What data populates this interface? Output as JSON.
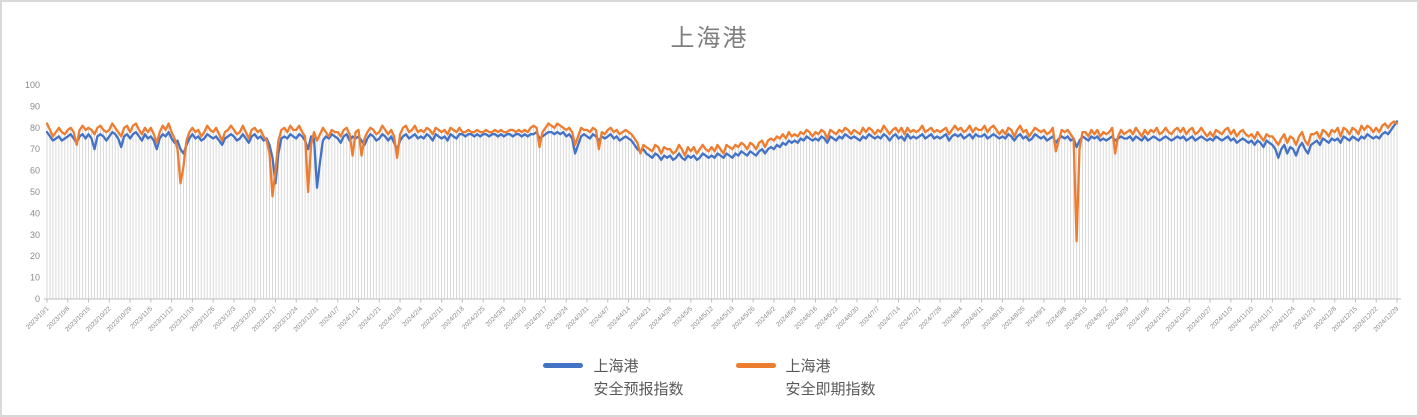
{
  "window": {
    "background": "#ffffff",
    "border_color": "#d9d9d9"
  },
  "chart_data": {
    "type": "line",
    "title": "上海港",
    "title_color": "#7f7f7f",
    "xlabel": "",
    "ylabel": "",
    "ylim": [
      0,
      100
    ],
    "y_ticks": [
      0,
      10,
      20,
      30,
      40,
      50,
      60,
      70,
      80,
      90,
      100
    ],
    "grid": "vertical-drop-lines-per-day",
    "grid_color": "#d9d9d9",
    "axis_color": "#bfbfbf",
    "tick_label_color": "#8c8c8c",
    "legend_position": "bottom",
    "x_start_date": "2023/10/1",
    "x_end_date": "2024/12/29",
    "x_tick_interval_days": 7,
    "x_tick_labels": [
      "2023/10/1",
      "2023/10/8",
      "2023/10/15",
      "2023/10/22",
      "2023/10/29",
      "2023/11/5",
      "2023/11/12",
      "2023/11/19",
      "2023/11/26",
      "2023/12/3",
      "2023/12/10",
      "2023/12/17",
      "2023/12/24",
      "2023/12/31",
      "2024/1/7",
      "2024/1/14",
      "2024/1/21",
      "2024/1/28",
      "2024/2/4",
      "2024/2/11",
      "2024/2/18",
      "2024/2/25",
      "2024/3/3",
      "2024/3/10",
      "2024/3/17",
      "2024/3/24",
      "2024/3/31",
      "2024/4/7",
      "2024/4/14",
      "2024/4/21",
      "2024/4/28",
      "2024/5/5",
      "2024/5/12",
      "2024/5/19",
      "2024/5/26",
      "2024/6/2",
      "2024/6/9",
      "2024/6/16",
      "2024/6/23",
      "2024/6/30",
      "2024/7/7",
      "2024/7/14",
      "2024/7/21",
      "2024/7/28",
      "2024/8/4",
      "2024/8/11",
      "2024/8/18",
      "2024/8/25",
      "2024/9/1",
      "2024/9/8",
      "2024/9/15",
      "2024/9/22",
      "2024/9/29",
      "2024/10/6",
      "2024/10/13",
      "2024/10/20",
      "2024/10/27",
      "2024/11/3",
      "2024/11/10",
      "2024/11/17",
      "2024/11/24",
      "2024/12/1",
      "2024/12/8",
      "2024/12/15",
      "2024/12/22",
      "2024/12/29"
    ],
    "series": [
      {
        "name": "上海港 安全预报指数",
        "legend_lines": [
          "上海港",
          "安全预报指数"
        ],
        "color": "#4472c4",
        "values": [
          78,
          76,
          74,
          75,
          76,
          74,
          75,
          76,
          77,
          75,
          73,
          76,
          77,
          75,
          77,
          75,
          70,
          76,
          77,
          76,
          74,
          76,
          78,
          77,
          75,
          71,
          76,
          77,
          75,
          77,
          78,
          76,
          74,
          77,
          75,
          76,
          74,
          70,
          75,
          77,
          76,
          78,
          75,
          73,
          74,
          70,
          68,
          72,
          75,
          77,
          75,
          76,
          74,
          75,
          77,
          76,
          75,
          76,
          74,
          72,
          75,
          76,
          77,
          76,
          74,
          75,
          77,
          75,
          73,
          76,
          77,
          75,
          76,
          74,
          75,
          72,
          66,
          54,
          68,
          75,
          76,
          75,
          77,
          76,
          75,
          77,
          76,
          74,
          70,
          76,
          75,
          52,
          64,
          74,
          76,
          75,
          77,
          76,
          75,
          73,
          76,
          77,
          74,
          76,
          75,
          76,
          74,
          72,
          75,
          77,
          76,
          74,
          75,
          77,
          76,
          74,
          76,
          73,
          70,
          74,
          76,
          77,
          75,
          76,
          77,
          75,
          76,
          75,
          77,
          76,
          74,
          77,
          76,
          75,
          76,
          74,
          77,
          76,
          75,
          77,
          77,
          76,
          77,
          77,
          76,
          77,
          76,
          77,
          77,
          76,
          77,
          77,
          76,
          77,
          76,
          77,
          77,
          76,
          77,
          77,
          76,
          77,
          76,
          77,
          77,
          78,
          75,
          76,
          77,
          78,
          78,
          77,
          78,
          77,
          78,
          76,
          77,
          75,
          68,
          72,
          76,
          77,
          76,
          75,
          77,
          76,
          74,
          76,
          75,
          76,
          77,
          75,
          76,
          74,
          75,
          76,
          75,
          74,
          72,
          70,
          69,
          70,
          68,
          67,
          66,
          68,
          67,
          65,
          67,
          66,
          67,
          65,
          66,
          68,
          66,
          65,
          67,
          66,
          67,
          65,
          66,
          68,
          67,
          66,
          67,
          66,
          68,
          67,
          66,
          68,
          67,
          66,
          68,
          67,
          69,
          68,
          67,
          69,
          68,
          67,
          69,
          70,
          68,
          70,
          71,
          70,
          72,
          71,
          73,
          72,
          74,
          73,
          74,
          73,
          75,
          74,
          76,
          75,
          74,
          75,
          74,
          76,
          75,
          73,
          76,
          75,
          74,
          76,
          75,
          77,
          76,
          75,
          76,
          75,
          74,
          76,
          75,
          77,
          76,
          75,
          76,
          75,
          77,
          76,
          74,
          76,
          77,
          75,
          76,
          74,
          77,
          75,
          76,
          75,
          76,
          77,
          75,
          76,
          77,
          75,
          76,
          75,
          76,
          77,
          74,
          76,
          77,
          76,
          77,
          75,
          76,
          77,
          75,
          77,
          76,
          76,
          77,
          75,
          76,
          77,
          76,
          75,
          76,
          75,
          77,
          76,
          74,
          76,
          77,
          75,
          76,
          74,
          75,
          77,
          76,
          75,
          76,
          74,
          75,
          76,
          73,
          75,
          76,
          75,
          76,
          74,
          75,
          71,
          74,
          76,
          75,
          74,
          76,
          75,
          76,
          74,
          75,
          74,
          75,
          76,
          74,
          75,
          76,
          75,
          75,
          76,
          74,
          76,
          75,
          74,
          76,
          74,
          75,
          76,
          75,
          74,
          75,
          76,
          75,
          74,
          75,
          76,
          75,
          76,
          74,
          75,
          76,
          74,
          75,
          76,
          75,
          74,
          75,
          74,
          76,
          75,
          74,
          75,
          76,
          74,
          75,
          73,
          74,
          75,
          74,
          73,
          74,
          72,
          74,
          73,
          71,
          74,
          73,
          72,
          70,
          66,
          70,
          72,
          68,
          71,
          70,
          67,
          71,
          73,
          70,
          68,
          72,
          73,
          74,
          72,
          75,
          74,
          73,
          75,
          74,
          75,
          73,
          76,
          75,
          74,
          76,
          75,
          74,
          76,
          75,
          77,
          76,
          75,
          76,
          75,
          77,
          78,
          77,
          79,
          81,
          83
        ]
      },
      {
        "name": "上海港 安全即期指数",
        "legend_lines": [
          "上海港",
          "安全即期指数"
        ],
        "color": "#ed7d31",
        "values": [
          82,
          79,
          76,
          78,
          80,
          78,
          77,
          79,
          80,
          78,
          72,
          79,
          81,
          79,
          80,
          79,
          77,
          80,
          81,
          79,
          78,
          79,
          82,
          80,
          78,
          76,
          80,
          81,
          78,
          81,
          82,
          79,
          77,
          80,
          78,
          80,
          77,
          73,
          78,
          81,
          79,
          82,
          78,
          75,
          70,
          54,
          62,
          74,
          78,
          80,
          78,
          79,
          76,
          78,
          81,
          79,
          78,
          80,
          77,
          74,
          78,
          79,
          81,
          79,
          77,
          78,
          81,
          78,
          75,
          79,
          80,
          78,
          79,
          76,
          74,
          68,
          48,
          60,
          74,
          79,
          80,
          78,
          81,
          79,
          79,
          81,
          78,
          76,
          50,
          72,
          78,
          74,
          77,
          80,
          78,
          76,
          79,
          78,
          78,
          76,
          79,
          80,
          77,
          67,
          78,
          79,
          67,
          75,
          78,
          80,
          79,
          77,
          78,
          81,
          79,
          77,
          79,
          76,
          66,
          77,
          80,
          81,
          78,
          79,
          81,
          78,
          79,
          78,
          80,
          79,
          77,
          80,
          79,
          78,
          79,
          77,
          80,
          79,
          78,
          80,
          78,
          78,
          79,
          78,
          78,
          79,
          78,
          78,
          79,
          78,
          78,
          79,
          78,
          79,
          78,
          78,
          79,
          79,
          78,
          79,
          78,
          79,
          78,
          80,
          81,
          80,
          71,
          78,
          80,
          82,
          81,
          80,
          82,
          81,
          80,
          79,
          80,
          78,
          72,
          76,
          80,
          79,
          79,
          78,
          80,
          79,
          70,
          78,
          77,
          79,
          80,
          78,
          79,
          77,
          78,
          79,
          78,
          77,
          75,
          73,
          68,
          72,
          71,
          70,
          69,
          72,
          71,
          68,
          71,
          70,
          70,
          68,
          69,
          72,
          70,
          67,
          71,
          69,
          71,
          68,
          70,
          72,
          70,
          69,
          71,
          69,
          72,
          70,
          68,
          72,
          71,
          70,
          72,
          71,
          73,
          72,
          70,
          73,
          72,
          70,
          73,
          74,
          71,
          74,
          75,
          74,
          76,
          75,
          77,
          75,
          78,
          76,
          77,
          76,
          78,
          77,
          79,
          78,
          76,
          78,
          77,
          79,
          78,
          75,
          79,
          78,
          77,
          79,
          78,
          80,
          79,
          77,
          79,
          78,
          77,
          80,
          78,
          80,
          79,
          77,
          79,
          78,
          81,
          79,
          77,
          79,
          80,
          78,
          80,
          77,
          80,
          78,
          79,
          78,
          79,
          81,
          78,
          79,
          80,
          78,
          79,
          78,
          79,
          80,
          77,
          79,
          81,
          79,
          80,
          78,
          79,
          81,
          78,
          80,
          79,
          79,
          81,
          78,
          80,
          81,
          79,
          77,
          79,
          77,
          80,
          79,
          76,
          79,
          81,
          78,
          79,
          76,
          78,
          80,
          79,
          78,
          79,
          77,
          78,
          80,
          69,
          74,
          79,
          78,
          79,
          77,
          75,
          27,
          70,
          78,
          78,
          76,
          79,
          77,
          79,
          76,
          78,
          77,
          78,
          80,
          68,
          76,
          79,
          77,
          78,
          79,
          77,
          80,
          78,
          76,
          79,
          77,
          79,
          78,
          80,
          77,
          78,
          80,
          78,
          77,
          79,
          80,
          78,
          80,
          77,
          79,
          80,
          77,
          78,
          80,
          78,
          76,
          78,
          76,
          79,
          78,
          77,
          79,
          80,
          77,
          79,
          76,
          78,
          79,
          77,
          76,
          77,
          75,
          78,
          76,
          74,
          77,
          76,
          76,
          74,
          72,
          75,
          77,
          73,
          76,
          75,
          72,
          76,
          78,
          74,
          72,
          77,
          77,
          78,
          75,
          79,
          78,
          76,
          79,
          78,
          80,
          76,
          80,
          79,
          77,
          80,
          79,
          77,
          81,
          79,
          81,
          80,
          78,
          80,
          78,
          81,
          82,
          80,
          82,
          83,
          82
        ]
      }
    ]
  }
}
